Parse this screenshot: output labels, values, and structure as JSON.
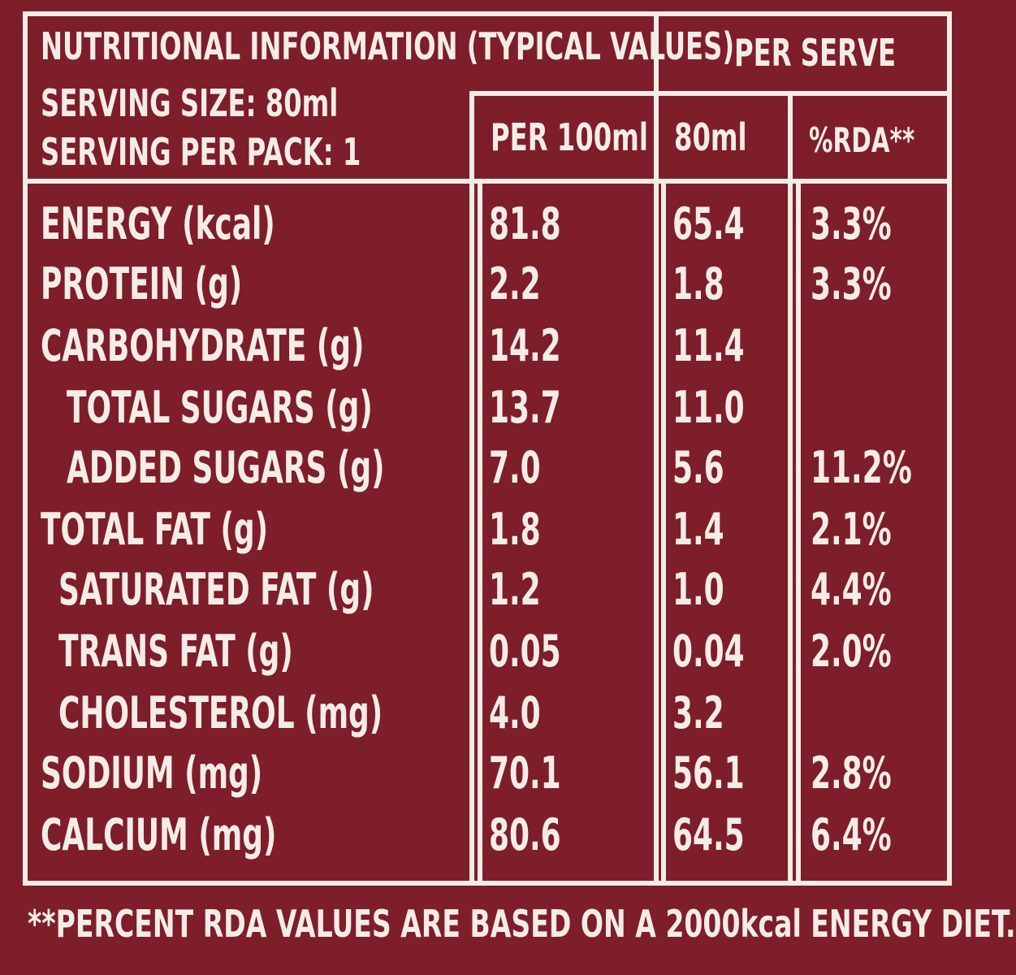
{
  "header": {
    "title": "NUTRITIONAL INFORMATION (TYPICAL VALUES)",
    "serving_size": "SERVING SIZE: 80ml",
    "servings_per_pack": "SERVING PER PACK: 1",
    "per_serve": "PER SERVE",
    "col_per100": "PER 100ml",
    "col_80ml": "80ml",
    "col_rda": "%RDA**"
  },
  "rows": [
    {
      "label": "ENERGY (kcal)",
      "per100": "81.8",
      "serve": "65.4",
      "rda": "3.3%"
    },
    {
      "label": "PROTEIN (g)",
      "per100": "2.2",
      "serve": "1.8",
      "rda": "3.3%"
    },
    {
      "label": "CARBOHYDRATE (g)",
      "per100": "14.2",
      "serve": "11.4",
      "rda": ""
    },
    {
      "label": "TOTAL SUGARS (g)",
      "per100": "13.7",
      "serve": "11.0",
      "rda": ""
    },
    {
      "label": "ADDED SUGARS (g)",
      "per100": "7.0",
      "serve": "5.6",
      "rda": "11.2%"
    },
    {
      "label": "TOTAL FAT (g)",
      "per100": "1.8",
      "serve": "1.4",
      "rda": "2.1%"
    },
    {
      "label": "SATURATED FAT (g)",
      "per100": "1.2",
      "serve": "1.0",
      "rda": "4.4%"
    },
    {
      "label": "TRANS FAT (g)",
      "per100": "0.05",
      "serve": "0.04",
      "rda": "2.0%"
    },
    {
      "label": "CHOLESTEROL (mg)",
      "per100": "4.0",
      "serve": "3.2",
      "rda": ""
    },
    {
      "label": "SODIUM (mg)",
      "per100": "70.1",
      "serve": "56.1",
      "rda": "2.8%"
    },
    {
      "label": "CALCIUM (mg)",
      "per100": "80.6",
      "serve": "64.5",
      "rda": "6.4%"
    }
  ],
  "footnote": "**PERCENT RDA VALUES ARE BASED ON A 2000kcal ENERGY DIET.",
  "colors": {
    "background": "#7d1e2a",
    "text": "#f4ece6"
  }
}
